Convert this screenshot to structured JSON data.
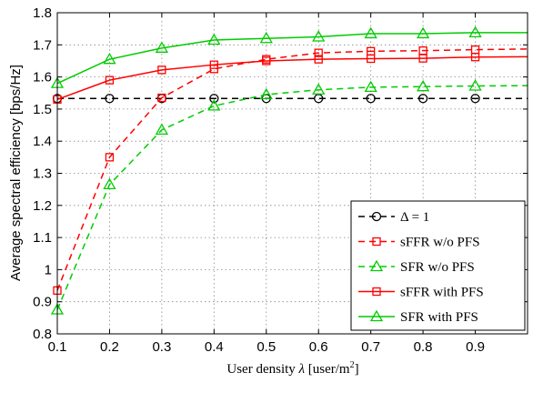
{
  "chart_data": {
    "type": "line",
    "xlabel_pre": "User density ",
    "xlabel_sym": "λ",
    "xlabel_unit": " [user/m",
    "xlabel_sup": "2",
    "xlabel_end": "]",
    "ylabel": "Average spectral efficiency [bps/Hz]",
    "xlim": [
      0.1,
      1.0
    ],
    "ylim": [
      0.8,
      1.8
    ],
    "grid": true,
    "legend_position": "bottom-right",
    "x": [
      0.1,
      0.2,
      0.3,
      0.4,
      0.5,
      0.6,
      0.7,
      0.8,
      0.9,
      1.0
    ],
    "xticks": [
      "0.1",
      "0.2",
      "0.3",
      "0.4",
      "0.5",
      "0.6",
      "0.7",
      "0.8",
      "0.9"
    ],
    "yticks": [
      "0.8",
      "0.9",
      "1",
      "1.1",
      "1.2",
      "1.3",
      "1.4",
      "1.5",
      "1.6",
      "1.7",
      "1.8"
    ],
    "series": [
      {
        "name": "Δ = 1",
        "color": "#000000",
        "dash": true,
        "marker": "circle",
        "values": [
          1.533,
          1.533,
          1.533,
          1.533,
          1.533,
          1.533,
          1.533,
          1.533,
          1.533,
          1.533
        ]
      },
      {
        "name": "sFFR w/o PFS",
        "color": "#ff0000",
        "dash": true,
        "marker": "square",
        "values": [
          0.935,
          1.35,
          1.535,
          1.625,
          1.655,
          1.675,
          1.68,
          1.682,
          1.685,
          1.687
        ]
      },
      {
        "name": "SFR w/o PFS",
        "color": "#00cc00",
        "dash": true,
        "marker": "triangle",
        "values": [
          0.875,
          1.265,
          1.435,
          1.51,
          1.545,
          1.56,
          1.568,
          1.57,
          1.572,
          1.573
        ]
      },
      {
        "name": "sFFR with PFS",
        "color": "#ff0000",
        "dash": false,
        "marker": "square",
        "values": [
          1.53,
          1.59,
          1.622,
          1.638,
          1.65,
          1.655,
          1.657,
          1.658,
          1.662,
          1.663
        ]
      },
      {
        "name": "SFR with PFS",
        "color": "#00cc00",
        "dash": false,
        "marker": "triangle",
        "values": [
          1.58,
          1.655,
          1.69,
          1.715,
          1.72,
          1.725,
          1.735,
          1.735,
          1.738,
          1.738
        ]
      }
    ]
  }
}
